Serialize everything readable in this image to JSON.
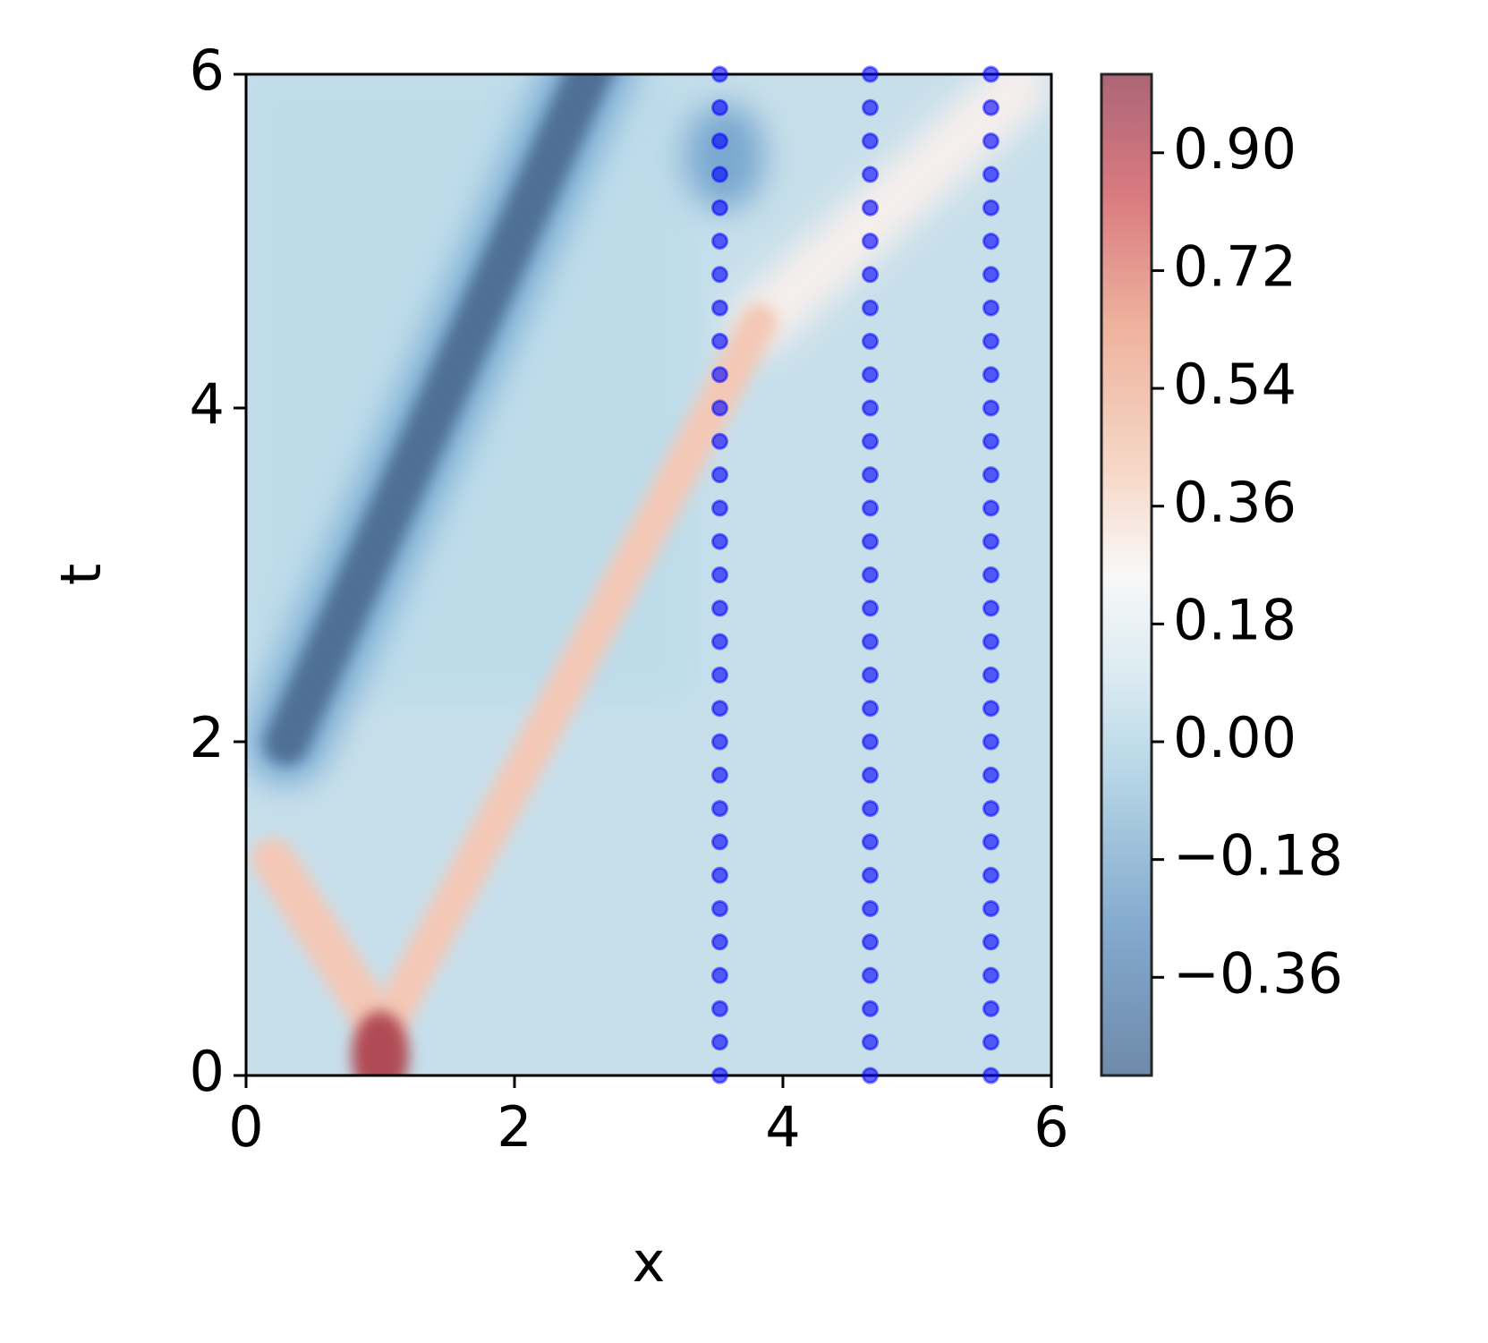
{
  "chart_data": {
    "type": "contour",
    "xlabel": "x",
    "ylabel": "t",
    "xlim": [
      0,
      6
    ],
    "ylim": [
      0,
      6
    ],
    "xticks": [
      0,
      2,
      4,
      6
    ],
    "yticks": [
      0,
      2,
      4,
      6
    ],
    "colorbar": {
      "lim": [
        -0.51,
        1.02
      ],
      "ticks": [
        {
          "value": -0.36,
          "label": "−0.36"
        },
        {
          "value": -0.18,
          "label": "−0.18"
        },
        {
          "value": 0,
          "label": "0.00"
        },
        {
          "value": 0.18,
          "label": "0.18"
        },
        {
          "value": 0.36,
          "label": "0.36"
        },
        {
          "value": 0.54,
          "label": "0.54"
        },
        {
          "value": 0.72,
          "label": "0.72"
        },
        {
          "value": 0.9,
          "label": "0.90"
        }
      ]
    },
    "points": {
      "color": "#0000ff",
      "columns": [
        {
          "x": 3.53,
          "y": [
            0,
            0.2,
            0.4,
            0.6,
            0.8,
            1,
            1.2,
            1.4,
            1.6,
            1.8,
            2,
            2.2,
            2.4,
            2.6,
            2.8,
            3,
            3.2,
            3.4,
            3.6,
            3.8,
            4,
            4.2,
            4.4,
            4.6,
            4.8,
            5,
            5.2,
            5.4,
            5.6,
            5.8,
            6
          ]
        },
        {
          "x": 4.65,
          "y": [
            0,
            0.2,
            0.4,
            0.6,
            0.8,
            1,
            1.2,
            1.4,
            1.6,
            1.8,
            2,
            2.2,
            2.4,
            2.6,
            2.8,
            3,
            3.2,
            3.4,
            3.6,
            3.8,
            4,
            4.2,
            4.4,
            4.6,
            4.8,
            5,
            5.2,
            5.4,
            5.6,
            5.8,
            6
          ]
        },
        {
          "x": 5.55,
          "y": [
            0,
            0.2,
            0.4,
            0.6,
            0.8,
            1,
            1.2,
            1.4,
            1.6,
            1.8,
            2,
            2.2,
            2.4,
            2.6,
            2.8,
            3,
            3.2,
            3.4,
            3.6,
            3.8,
            4,
            4.2,
            4.4,
            4.6,
            4.8,
            5,
            5.2,
            5.4,
            5.6,
            5.8,
            6
          ]
        }
      ]
    }
  }
}
